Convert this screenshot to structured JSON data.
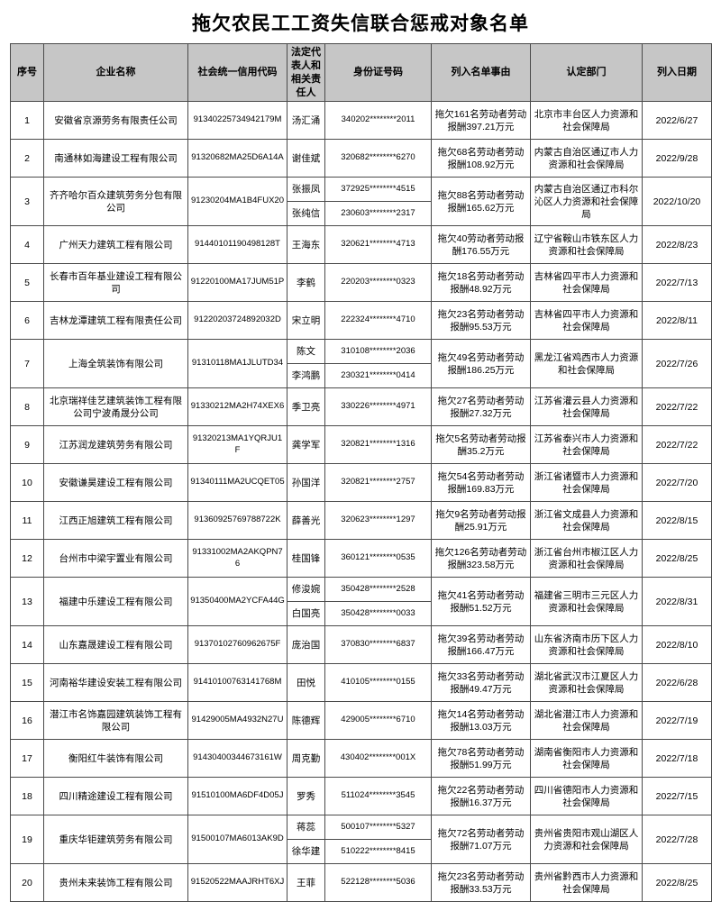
{
  "title": "拖欠农民工工资失信联合惩戒对象名单",
  "colors": {
    "header_bg": "#c6c6c6",
    "border_color": "#4a4a4a",
    "page_bg": "#ffffff",
    "text_color": "#000000"
  },
  "table": {
    "headers": [
      "序号",
      "企业名称",
      "社会统一信用代码",
      "法定代表人和相关责任人",
      "身份证号码",
      "列入名单事由",
      "认定部门",
      "列入日期"
    ],
    "rows": [
      {
        "seq": "1",
        "company": "安徽省京源劳务有限责任公司",
        "credit_code": "91340225734942179M",
        "persons": [
          {
            "name": "汤汇涌",
            "id": "340202********2011"
          }
        ],
        "reason": "拖欠161名劳动者劳动报酬397.21万元",
        "department": "北京市丰台区人力资源和社会保障局",
        "date": "2022/6/27"
      },
      {
        "seq": "2",
        "company": "南通林如海建设工程有限公司",
        "credit_code": "91320682MA25D6A14A",
        "persons": [
          {
            "name": "谢佳斌",
            "id": "320682********6270"
          }
        ],
        "reason": "拖欠68名劳动者劳动报酬108.92万元",
        "department": "内蒙古自治区通辽市人力资源和社会保障局",
        "date": "2022/9/28"
      },
      {
        "seq": "3",
        "company": "齐齐哈尔百众建筑劳务分包有限公司",
        "credit_code": "91230204MA1B4FUX20",
        "persons": [
          {
            "name": "张振凤",
            "id": "372925********4515"
          },
          {
            "name": "张纯信",
            "id": "230603********2317"
          }
        ],
        "reason": "拖欠88名劳动者劳动报酬165.62万元",
        "department": "内蒙古自治区通辽市科尔沁区人力资源和社会保障局",
        "date": "2022/10/20"
      },
      {
        "seq": "4",
        "company": "广州天力建筑工程有限公司",
        "credit_code": "91440101190498128T",
        "persons": [
          {
            "name": "王海东",
            "id": "320621********4713"
          }
        ],
        "reason": "拖欠40劳动者劳动报酬176.55万元",
        "department": "辽宁省鞍山市铁东区人力资源和社会保障局",
        "date": "2022/8/23"
      },
      {
        "seq": "5",
        "company": "长春市百年基业建设工程有限公司",
        "credit_code": "91220100MA17JUM51P",
        "persons": [
          {
            "name": "李鹤",
            "id": "220203********0323"
          }
        ],
        "reason": "拖欠18名劳动者劳动报酬48.92万元",
        "department": "吉林省四平市人力资源和社会保障局",
        "date": "2022/7/13"
      },
      {
        "seq": "6",
        "company": "吉林龙潭建筑工程有限责任公司",
        "credit_code": "91220203724892032D",
        "persons": [
          {
            "name": "宋立明",
            "id": "222324********4710"
          }
        ],
        "reason": "拖欠23名劳动者劳动报酬95.53万元",
        "department": "吉林省四平市人力资源和社会保障局",
        "date": "2022/8/11"
      },
      {
        "seq": "7",
        "company": "上海全筑装饰有限公司",
        "credit_code": "91310118MA1JLUTD34",
        "persons": [
          {
            "name": "陈文",
            "id": "310108********2036"
          },
          {
            "name": "李鸿鹏",
            "id": "230321********0414"
          }
        ],
        "reason": "拖欠49名劳动者劳动报酬186.25万元",
        "department": "黑龙江省鸡西市人力资源和社会保障局",
        "date": "2022/7/26"
      },
      {
        "seq": "8",
        "company": "北京瑞祥佳艺建筑装饰工程有限公司宁波甬晟分公司",
        "credit_code": "91330212MA2H74XEX6",
        "persons": [
          {
            "name": "季卫亮",
            "id": "330226********4971"
          }
        ],
        "reason": "拖欠27名劳动者劳动报酬27.32万元",
        "department": "江苏省灌云县人力资源和社会保障局",
        "date": "2022/7/22"
      },
      {
        "seq": "9",
        "company": "江苏润龙建筑劳务有限公司",
        "credit_code": "91320213MA1YQRJU1F",
        "persons": [
          {
            "name": "龚学军",
            "id": "320821********1316"
          }
        ],
        "reason": "拖欠5名劳动者劳动报酬35.2万元",
        "department": "江苏省泰兴市人力资源和社会保障局",
        "date": "2022/7/22"
      },
      {
        "seq": "10",
        "company": "安徽谦昊建设工程有限公司",
        "credit_code": "91340111MA2UCQET05",
        "persons": [
          {
            "name": "孙国洋",
            "id": "320821********2757"
          }
        ],
        "reason": "拖欠54名劳动者劳动报酬169.83万元",
        "department": "浙江省诸暨市人力资源和社会保障局",
        "date": "2022/7/20"
      },
      {
        "seq": "11",
        "company": "江西正旭建筑工程有限公司",
        "credit_code": "91360925769788722K",
        "persons": [
          {
            "name": "薛善光",
            "id": "320623********1297"
          }
        ],
        "reason": "拖欠9名劳动者劳动报酬25.91万元",
        "department": "浙江省文成县人力资源和社会保障局",
        "date": "2022/8/15"
      },
      {
        "seq": "12",
        "company": "台州市中梁宇置业有限公司",
        "credit_code": "91331002MA2AKQPN76",
        "persons": [
          {
            "name": "桂国锋",
            "id": "360121********0535"
          }
        ],
        "reason": "拖欠126名劳动者劳动报酬323.58万元",
        "department": "浙江省台州市椒江区人力资源和社会保障局",
        "date": "2022/8/25"
      },
      {
        "seq": "13",
        "company": "福建中乐建设工程有限公司",
        "credit_code": "91350400MA2YCFA44G",
        "persons": [
          {
            "name": "修浚婉",
            "id": "350428********2528"
          },
          {
            "name": "白国亮",
            "id": "350428********0033"
          }
        ],
        "reason": "拖欠41名劳动者劳动报酬51.52万元",
        "department": "福建省三明市三元区人力资源和社会保障局",
        "date": "2022/8/31"
      },
      {
        "seq": "14",
        "company": "山东嘉晟建设工程有限公司",
        "credit_code": "91370102760962675F",
        "persons": [
          {
            "name": "庞治国",
            "id": "370830********6837"
          }
        ],
        "reason": "拖欠39名劳动者劳动报酬166.47万元",
        "department": "山东省济南市历下区人力资源和社会保障局",
        "date": "2022/8/10"
      },
      {
        "seq": "15",
        "company": "河南裕华建设安装工程有限公司",
        "credit_code": "91410100763141768M",
        "persons": [
          {
            "name": "田悦",
            "id": "410105********0155"
          }
        ],
        "reason": "拖欠33名劳动者劳动报酬49.47万元",
        "department": "湖北省武汉市江夏区人力资源和社会保障局",
        "date": "2022/6/28"
      },
      {
        "seq": "16",
        "company": "潜江市名饰嘉园建筑装饰工程有限公司",
        "credit_code": "91429005MA4932N27U",
        "persons": [
          {
            "name": "陈德辉",
            "id": "429005********6710"
          }
        ],
        "reason": "拖欠14名劳动者劳动报酬13.03万元",
        "department": "湖北省潜江市人力资源和社会保障局",
        "date": "2022/7/19"
      },
      {
        "seq": "17",
        "company": "衡阳红牛装饰有限公司",
        "credit_code": "91430400344673161W",
        "persons": [
          {
            "name": "周克勤",
            "id": "430402********001X"
          }
        ],
        "reason": "拖欠78名劳动者劳动报酬51.99万元",
        "department": "湖南省衡阳市人力资源和社会保障局",
        "date": "2022/7/18"
      },
      {
        "seq": "18",
        "company": "四川精途建设工程有限公司",
        "credit_code": "91510100MA6DF4D05J",
        "persons": [
          {
            "name": "罗秀",
            "id": "511024********3545"
          }
        ],
        "reason": "拖欠22名劳动者劳动报酬16.37万元",
        "department": "四川省德阳市人力资源和社会保障局",
        "date": "2022/7/15"
      },
      {
        "seq": "19",
        "company": "重庆华钜建筑劳务有限公司",
        "credit_code": "91500107MA6013AK9D",
        "persons": [
          {
            "name": "蒋蕊",
            "id": "500107********5327"
          },
          {
            "name": "徐华建",
            "id": "510222********8415"
          }
        ],
        "reason": "拖欠72名劳动者劳动报酬71.07万元",
        "department": "贵州省贵阳市观山湖区人力资源和社会保障局",
        "date": "2022/7/28"
      },
      {
        "seq": "20",
        "company": "贵州未来装饰工程有限公司",
        "credit_code": "91520522MAAJRHT6XJ",
        "persons": [
          {
            "name": "王菲",
            "id": "522128********5036"
          }
        ],
        "reason": "拖欠23名劳动者劳动报酬33.53万元",
        "department": "贵州省黔西市人力资源和社会保障局",
        "date": "2022/8/25"
      }
    ]
  }
}
